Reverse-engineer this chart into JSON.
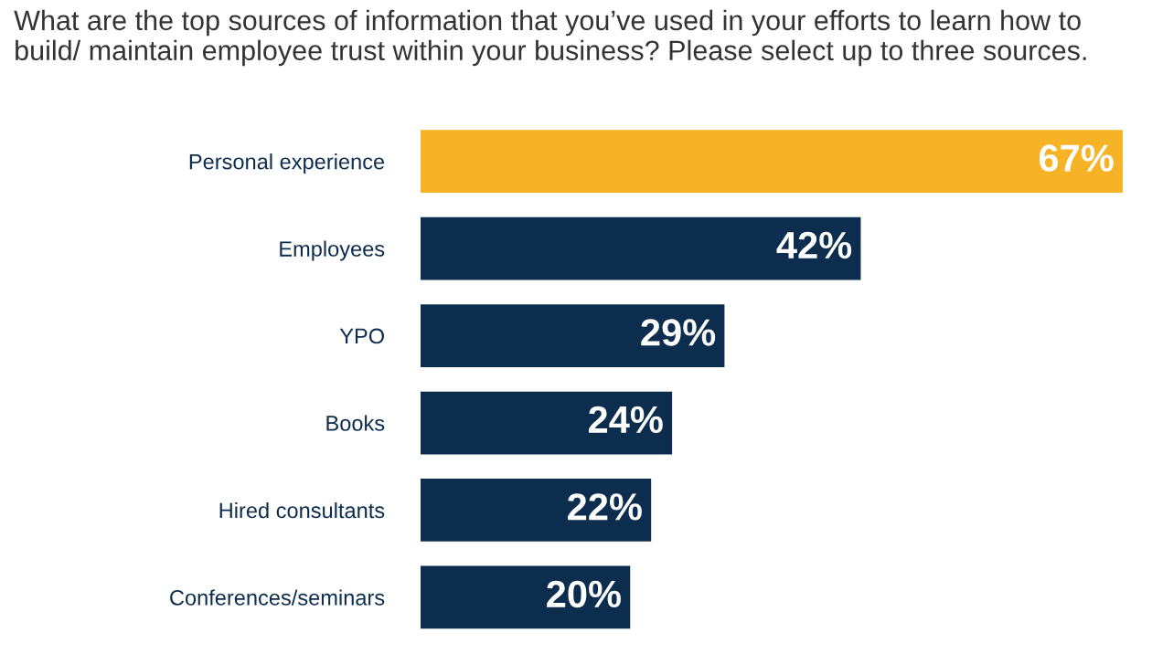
{
  "chart_data": {
    "type": "bar",
    "orientation": "horizontal",
    "title": "What are the top sources of information that you’ve used in your efforts to learn how to build/ maintain employee trust within your business? Please select up to three sources.",
    "categories": [
      "Personal experience",
      "Employees",
      "YPO",
      "Books",
      "Hired consultants",
      "Conferences/seminars"
    ],
    "values": [
      67,
      42,
      29,
      24,
      22,
      20
    ],
    "colors": [
      "#f6b326",
      "#0d2d4f",
      "#0d2d4f",
      "#0d2d4f",
      "#0d2d4f",
      "#0d2d4f"
    ],
    "value_labels": [
      "67%",
      "42%",
      "29%",
      "24%",
      "22%",
      "20%"
    ],
    "relative": false,
    "xlim": [
      0,
      67
    ]
  }
}
